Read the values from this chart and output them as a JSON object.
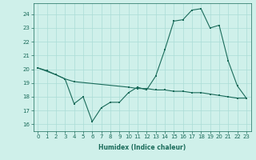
{
  "xlabel": "Humidex (Indice chaleur)",
  "background_color": "#cff0ea",
  "line_color": "#1a6b5a",
  "grid_color": "#aaddd6",
  "xlim": [
    -0.5,
    23.5
  ],
  "ylim": [
    15.5,
    24.8
  ],
  "yticks": [
    16,
    17,
    18,
    19,
    20,
    21,
    22,
    23,
    24
  ],
  "xticks": [
    0,
    1,
    2,
    3,
    4,
    5,
    6,
    7,
    8,
    9,
    10,
    11,
    12,
    13,
    14,
    15,
    16,
    17,
    18,
    19,
    20,
    21,
    22,
    23
  ],
  "series1_x": [
    0,
    1,
    2,
    3,
    4,
    5,
    6,
    7,
    8,
    9,
    10,
    11,
    12,
    13,
    14,
    15,
    16,
    17,
    18,
    19,
    20,
    21,
    22,
    23
  ],
  "series1_y": [
    20.1,
    19.9,
    19.6,
    19.3,
    17.5,
    18.0,
    16.2,
    17.2,
    17.6,
    17.6,
    18.3,
    18.7,
    18.5,
    19.5,
    21.4,
    23.5,
    23.6,
    24.3,
    24.4,
    23.0,
    23.2,
    20.6,
    18.8,
    17.9
  ],
  "series2_x": [
    0,
    2,
    3,
    4,
    10,
    11,
    12,
    13,
    14,
    15,
    16,
    17,
    18,
    19,
    20,
    21,
    22,
    23
  ],
  "series2_y": [
    20.1,
    19.6,
    19.3,
    19.1,
    18.7,
    18.6,
    18.6,
    18.5,
    18.5,
    18.4,
    18.4,
    18.3,
    18.3,
    18.2,
    18.1,
    18.0,
    17.9,
    17.9
  ],
  "xlabel_fontsize": 5.5,
  "tick_fontsize": 5.0
}
